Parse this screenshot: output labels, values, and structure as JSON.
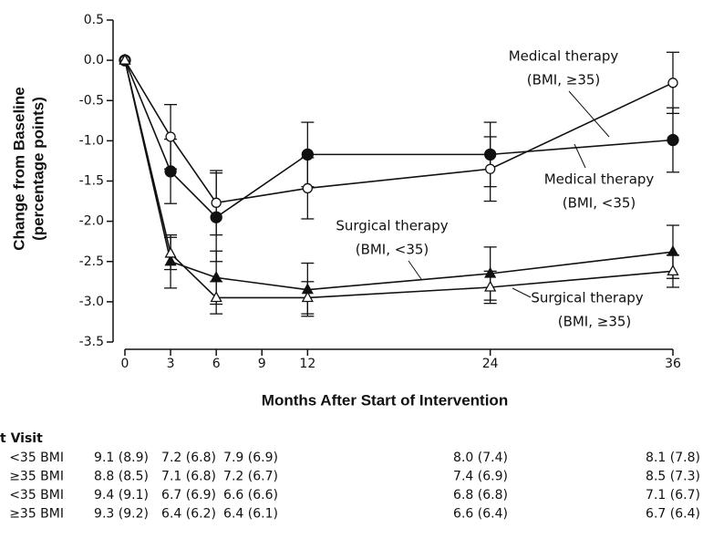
{
  "chart_data": {
    "type": "line",
    "ylabel": [
      "Change from Baseline",
      "(percentage points)"
    ],
    "xlabel": "Months After Start of Intervention",
    "x": [
      0,
      3,
      6,
      12,
      24,
      36
    ],
    "xlim": [
      0,
      36
    ],
    "xticks": [
      0,
      3,
      6,
      9,
      12,
      24,
      36
    ],
    "ylim": [
      -3.5,
      0.5
    ],
    "yticks": [
      0.5,
      {
        "value": 0,
        "label": "0.0"
      },
      -0.5,
      {
        "value": -1,
        "label": "-1.0"
      },
      -1.5,
      {
        "value": -2,
        "label": "-2.0"
      },
      -2.5,
      {
        "value": -3,
        "label": "-3.0"
      },
      -3.5
    ],
    "series": [
      {
        "color": "#111111",
        "marker": "circle",
        "filled": true,
        "values": [
          0,
          -1.38,
          -1.95,
          -1.17,
          -1.17,
          -0.99
        ],
        "errors": [
          null,
          0.4,
          0.55,
          0.4,
          0.4,
          0.4
        ]
      },
      {
        "color": "#111111",
        "marker": "circle",
        "filled": false,
        "values": [
          0,
          -0.95,
          -1.77,
          -1.59,
          -1.35,
          -0.28
        ],
        "errors": [
          null,
          0.4,
          0.4,
          0.38,
          0.4,
          0.38
        ]
      },
      {
        "color": "#111111",
        "marker": "triangle",
        "filled": true,
        "values": [
          0,
          -2.5,
          -2.7,
          -2.85,
          -2.65,
          -2.38
        ],
        "errors": [
          null,
          0.33,
          0.33,
          0.33,
          0.33,
          0.33
        ]
      },
      {
        "color": "#111111",
        "marker": "triangle",
        "filled": false,
        "values": [
          0,
          -2.4,
          -2.95,
          -2.95,
          -2.82,
          -2.62
        ],
        "errors": [
          null,
          0.2,
          0.2,
          0.2,
          0.2,
          0.2
        ]
      }
    ],
    "annotations": [
      [
        "Medical therapy",
        "(BMI, ≥35)"
      ],
      [
        "Medical therapy",
        "(BMI, <35)"
      ],
      [
        "Surgical therapy",
        "(BMI, <35)"
      ],
      [
        "Surgical therapy",
        "(BMI, ≥35)"
      ]
    ]
  },
  "table": {
    "title": "t Visit",
    "rows": [
      {
        "label": "<35 BMI",
        "cells": [
          "9.1 (8.9)",
          "7.2 (6.8)",
          "7.9 (6.9)",
          "8.0 (7.4)",
          "8.1 (7.8)"
        ]
      },
      {
        "label": "≥35 BMI",
        "cells": [
          "8.8 (8.5)",
          "7.1 (6.8)",
          "7.2 (6.7)",
          "7.4 (6.9)",
          "8.5 (7.3)"
        ]
      },
      {
        "label": "<35 BMI",
        "cells": [
          "9.4 (9.1)",
          "6.7 (6.9)",
          "6.6 (6.6)",
          "6.8 (6.8)",
          "7.1 (6.7)"
        ]
      },
      {
        "label": "≥35 BMI",
        "cells": [
          "9.3 (9.2)",
          "6.4 (6.2)",
          "6.4 (6.1)",
          "6.6 (6.4)",
          "6.7 (6.4)"
        ]
      }
    ]
  }
}
